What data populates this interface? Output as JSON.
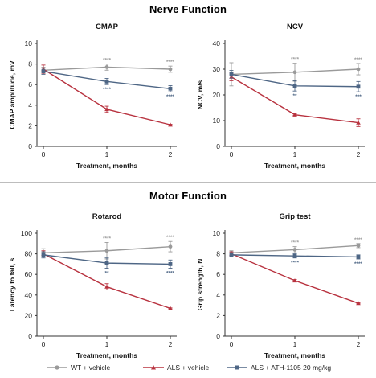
{
  "sections": {
    "nerve": "Nerve Function",
    "motor": "Motor Function"
  },
  "colors": {
    "wt": "#9a9a9a",
    "als": "#b8323f",
    "ath": "#4e6685"
  },
  "legend": {
    "wt": "WT + vehicle",
    "als": "ALS + vehicle",
    "ath": "ALS + ATH-1105 20 mg/kg"
  },
  "chart_data": [
    {
      "type": "line",
      "title": "CMAP",
      "xlabel": "Treatment, months",
      "ylabel": "CMAP amplitude, mV",
      "x": [
        0,
        1,
        2
      ],
      "xticks": [
        0,
        1,
        2
      ],
      "ylim": [
        0,
        10
      ],
      "yticks": [
        0,
        2,
        4,
        6,
        8,
        10
      ],
      "series": [
        {
          "name": "WT + vehicle",
          "values": [
            7.4,
            7.7,
            7.5
          ],
          "err": [
            0.3,
            0.3,
            0.3
          ],
          "sig": [
            "",
            "****",
            "****"
          ],
          "sig_pos": "above"
        },
        {
          "name": "ALS + vehicle",
          "values": [
            7.5,
            3.6,
            2.1
          ],
          "err": [
            0.4,
            0.3,
            0.05
          ],
          "sig": [
            "",
            "",
            ""
          ]
        },
        {
          "name": "ALS + ATH-1105 20 mg/kg",
          "values": [
            7.3,
            6.3,
            5.6
          ],
          "err": [
            0.3,
            0.3,
            0.3
          ],
          "sig": [
            "",
            "****",
            "****"
          ],
          "sig_pos": "below"
        }
      ]
    },
    {
      "type": "line",
      "title": "NCV",
      "xlabel": "Treatment, months",
      "ylabel": "NCV, m/s",
      "x": [
        0,
        1,
        2
      ],
      "xticks": [
        0,
        1,
        2
      ],
      "ylim": [
        0,
        40
      ],
      "yticks": [
        0,
        10,
        20,
        30,
        40
      ],
      "series": [
        {
          "name": "WT + vehicle",
          "values": [
            28.0,
            28.8,
            30.0
          ],
          "err": [
            4.5,
            3.5,
            2.2
          ],
          "sig": [
            "",
            "****",
            "****"
          ],
          "sig_pos": "above"
        },
        {
          "name": "ALS + vehicle",
          "values": [
            27.0,
            12.3,
            9.2
          ],
          "err": [
            1.5,
            0.3,
            1.5
          ],
          "sig": [
            "",
            "",
            ""
          ]
        },
        {
          "name": "ALS + ATH-1105 20 mg/kg",
          "values": [
            28.0,
            23.5,
            23.2
          ],
          "err": [
            1.5,
            2.0,
            2.0
          ],
          "sig": [
            "",
            "**",
            "***"
          ],
          "sig_pos": "below"
        }
      ]
    },
    {
      "type": "line",
      "title": "Rotarod",
      "xlabel": "Treatment, months",
      "ylabel": "Latency to fall, s",
      "x": [
        0,
        1,
        2
      ],
      "xticks": [
        0,
        1,
        2
      ],
      "ylim": [
        0,
        100
      ],
      "yticks": [
        0,
        20,
        40,
        60,
        80,
        100
      ],
      "series": [
        {
          "name": "WT + vehicle",
          "values": [
            81,
            83,
            87
          ],
          "err": [
            4,
            8,
            5
          ],
          "sig": [
            "",
            "****",
            "****"
          ],
          "sig_pos": "above"
        },
        {
          "name": "ALS + vehicle",
          "values": [
            80,
            48,
            27
          ],
          "err": [
            3,
            3,
            0.5
          ],
          "sig": [
            "",
            "",
            ""
          ]
        },
        {
          "name": "ALS + ATH-1105 20 mg/kg",
          "values": [
            79,
            71,
            70
          ],
          "err": [
            3,
            5,
            4
          ],
          "sig": [
            "",
            "**",
            "****"
          ],
          "sig_pos": "below"
        }
      ]
    },
    {
      "type": "line",
      "title": "Grip test",
      "xlabel": "Treatment, months",
      "ylabel": "Grip strength, N",
      "x": [
        0,
        1,
        2
      ],
      "xticks": [
        0,
        1,
        2
      ],
      "ylim": [
        0,
        10
      ],
      "yticks": [
        0,
        2,
        4,
        6,
        8,
        10
      ],
      "series": [
        {
          "name": "WT + vehicle",
          "values": [
            8.1,
            8.4,
            8.8
          ],
          "err": [
            0.2,
            0.3,
            0.2
          ],
          "sig": [
            "",
            "****",
            "****"
          ],
          "sig_pos": "above"
        },
        {
          "name": "ALS + vehicle",
          "values": [
            8.0,
            5.4,
            3.2
          ],
          "err": [
            0.2,
            0.1,
            0.05
          ],
          "sig": [
            "",
            "",
            ""
          ]
        },
        {
          "name": "ALS + ATH-1105 20 mg/kg",
          "values": [
            7.9,
            7.8,
            7.7
          ],
          "err": [
            0.2,
            0.2,
            0.2
          ],
          "sig": [
            "",
            "****",
            "****"
          ],
          "sig_pos": "below"
        }
      ]
    }
  ]
}
